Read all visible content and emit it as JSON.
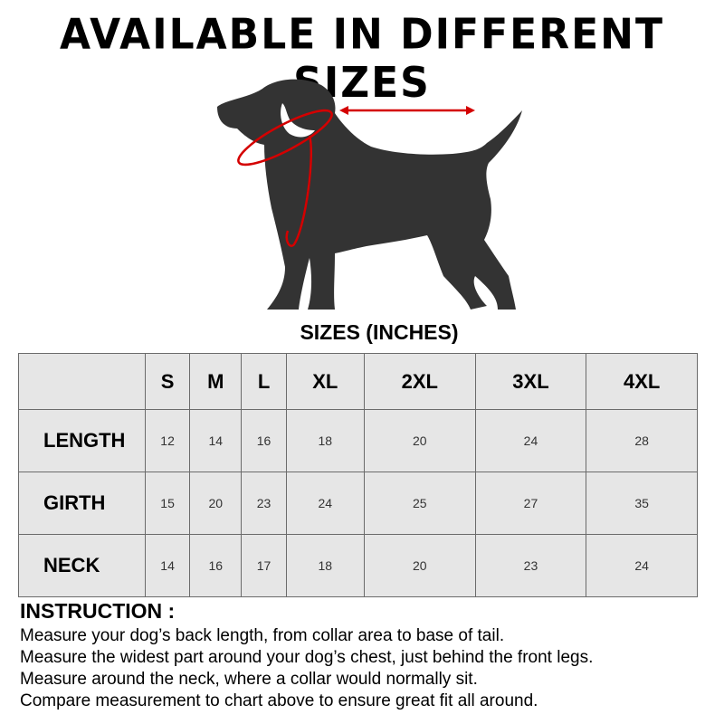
{
  "title": "AVAILABLE IN DIFFERENT SIZES",
  "illustration": {
    "icon": "dog-silhouette-icon",
    "body_color": "#333333",
    "arrow_color": "#d40000"
  },
  "subtitle": "SIZES (INCHES)",
  "table": {
    "columns": [
      "S",
      "M",
      "L",
      "XL",
      "2XL",
      "3XL",
      "4XL"
    ],
    "rows": [
      {
        "label": "LENGTH",
        "values": [
          "12",
          "14",
          "16",
          "18",
          "20",
          "24",
          "28"
        ]
      },
      {
        "label": "GIRTH",
        "values": [
          "15",
          "20",
          "23",
          "24",
          "25",
          "27",
          "35"
        ]
      },
      {
        "label": "NECK",
        "values": [
          "14",
          "16",
          "17",
          "18",
          "20",
          "23",
          "24"
        ]
      }
    ]
  },
  "instruction": {
    "heading": "INSTRUCTION :",
    "lines": [
      "Measure your dog’s back length, from collar area to base of tail.",
      "Measure the widest part around your dog’s chest, just behind the front legs.",
      "Measure around the neck, where a collar would normally sit.",
      "Compare measurement to chart above to ensure great fit all around."
    ]
  }
}
